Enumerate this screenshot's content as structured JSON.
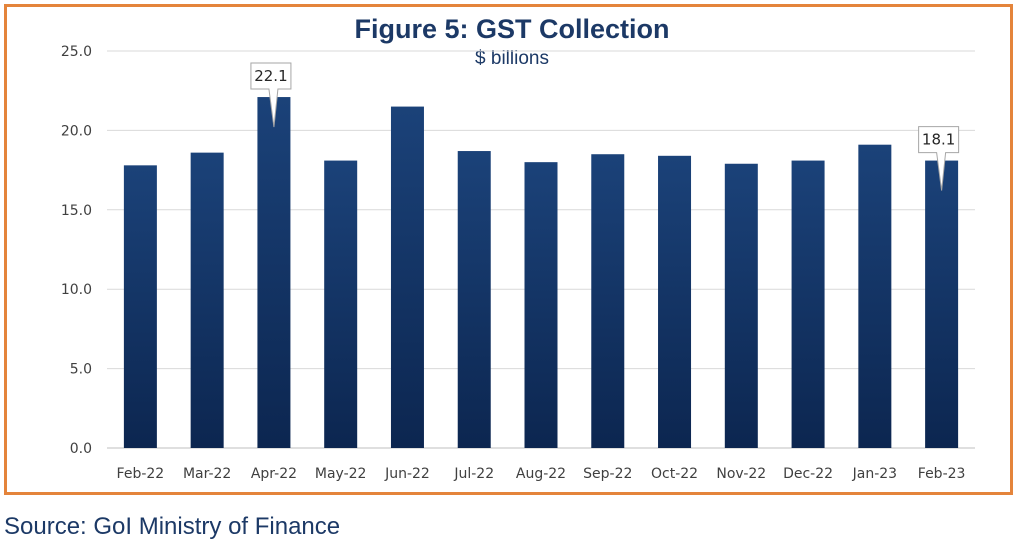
{
  "chart_data": {
    "type": "bar",
    "title": "Figure 5: GST Collection",
    "subtitle": "$ billions",
    "categories": [
      "Feb-22",
      "Mar-22",
      "Apr-22",
      "May-22",
      "Jun-22",
      "Jul-22",
      "Aug-22",
      "Sep-22",
      "Oct-22",
      "Nov-22",
      "Dec-22",
      "Jan-23",
      "Feb-23"
    ],
    "values": [
      17.8,
      18.6,
      22.1,
      18.1,
      21.5,
      18.7,
      18.0,
      18.5,
      18.4,
      17.9,
      18.1,
      19.1,
      18.1
    ],
    "ylim": [
      0,
      25
    ],
    "yticks": [
      "0.0",
      "5.0",
      "10.0",
      "15.0",
      "20.0",
      "25.0"
    ],
    "grid": true,
    "legend": "none",
    "callouts": [
      {
        "index": 2,
        "label": "22.1"
      },
      {
        "index": 12,
        "label": "18.1"
      }
    ],
    "colors": {
      "bar_top": "#1b4279",
      "bar_bottom": "#0c2650",
      "border": "#e4843b",
      "text": "#1c3966"
    }
  },
  "source": "Source: GoI Ministry of Finance"
}
